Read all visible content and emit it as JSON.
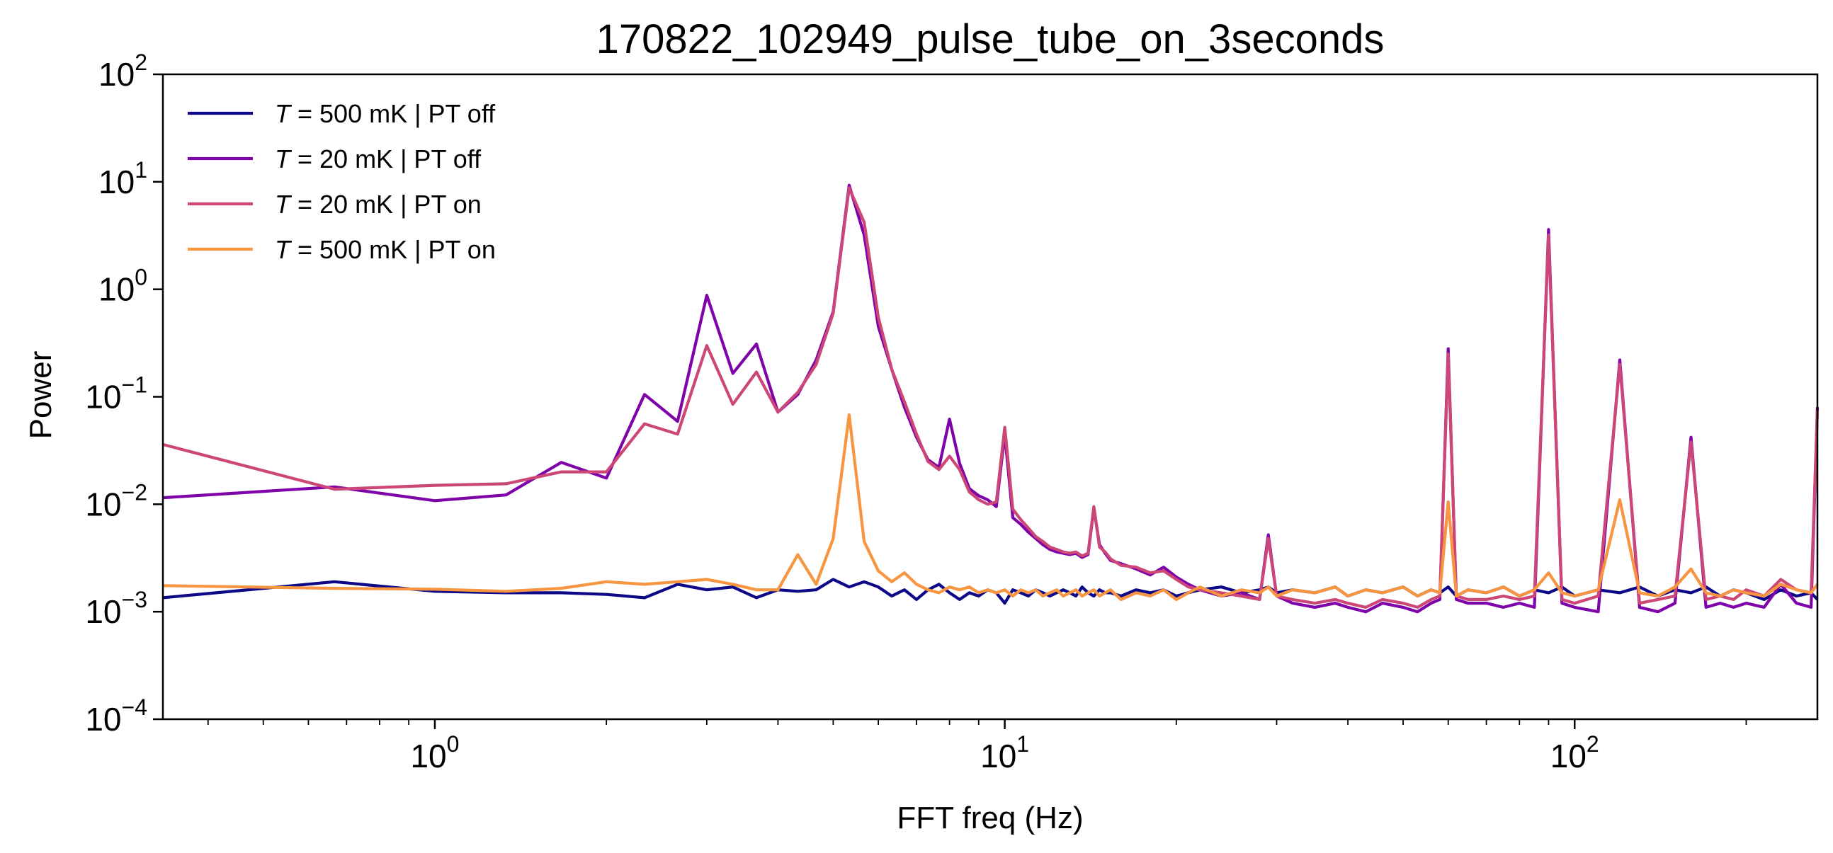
{
  "chart_data": {
    "type": "line",
    "title": "170822_102949_pulse_tube_on_3seconds",
    "xlabel": "FFT freq (Hz)",
    "ylabel": "Power",
    "xscale": "log",
    "yscale": "log",
    "xlim": [
      0.3333,
      266.67
    ],
    "ylim": [
      0.0001,
      100
    ],
    "grid": false,
    "legend_position": "top-left",
    "x_ticks": [
      {
        "base": "10",
        "exp": "0",
        "value": 1
      },
      {
        "base": "10",
        "exp": "1",
        "value": 10
      },
      {
        "base": "10",
        "exp": "2",
        "value": 100
      }
    ],
    "y_ticks": [
      {
        "base": "10",
        "exp": "−4",
        "value": 0.0001
      },
      {
        "base": "10",
        "exp": "−3",
        "value": 0.001
      },
      {
        "base": "10",
        "exp": "−2",
        "value": 0.01
      },
      {
        "base": "10",
        "exp": "−1",
        "value": 0.1
      },
      {
        "base": "10",
        "exp": "0",
        "value": 1
      },
      {
        "base": "10",
        "exp": "1",
        "value": 10
      },
      {
        "base": "10",
        "exp": "2",
        "value": 100
      }
    ],
    "series": [
      {
        "name": "T = 500 mK | PT off",
        "legend_italic": "T",
        "legend_rest": " = 500 mK | PT off",
        "color": "#0d0887",
        "x": [
          0.3333,
          0.6667,
          1.0,
          1.3333,
          1.6667,
          2.0,
          2.3333,
          2.6667,
          3.0,
          3.3333,
          3.6667,
          4.0,
          4.3333,
          4.6667,
          5.0,
          5.3333,
          5.6667,
          6.0,
          6.3333,
          6.6667,
          7.0,
          7.3333,
          7.6667,
          8.0,
          8.3333,
          8.6667,
          9.0,
          9.3333,
          9.6667,
          10.0,
          10.333,
          10.667,
          11.0,
          11.333,
          11.667,
          12.0,
          12.333,
          12.667,
          13.0,
          13.333,
          13.667,
          14.0,
          14.333,
          14.667,
          15.0,
          15.333,
          16.0,
          17.0,
          18.0,
          19.0,
          20.0,
          21.0,
          22.0,
          24.0,
          26.0,
          28.0,
          29.0,
          30.0,
          32.0,
          35.0,
          38.0,
          40.0,
          43.0,
          46.0,
          50.0,
          53.0,
          56.0,
          58.0,
          60.0,
          62.0,
          65.0,
          70.0,
          75.0,
          80.0,
          85.0,
          90.0,
          95.0,
          100.0,
          110.0,
          120.0,
          130.0,
          140.0,
          150.0,
          160.0,
          170.0,
          180.0,
          190.0,
          200.0,
          215.0,
          230.0,
          245.0,
          260.0,
          266.67
        ],
        "y": [
          0.00135,
          0.0019,
          0.00155,
          0.0015,
          0.0015,
          0.00145,
          0.00135,
          0.0018,
          0.0016,
          0.0017,
          0.00135,
          0.0016,
          0.00155,
          0.0016,
          0.002,
          0.0017,
          0.0019,
          0.0017,
          0.0014,
          0.0016,
          0.0013,
          0.0016,
          0.0018,
          0.0015,
          0.0013,
          0.0015,
          0.0014,
          0.0016,
          0.0015,
          0.0012,
          0.0016,
          0.0015,
          0.0014,
          0.0016,
          0.0015,
          0.0014,
          0.0015,
          0.0016,
          0.0015,
          0.0014,
          0.0017,
          0.0015,
          0.0014,
          0.0016,
          0.0015,
          0.0015,
          0.0014,
          0.0016,
          0.0015,
          0.0016,
          0.0014,
          0.0015,
          0.0016,
          0.0017,
          0.0015,
          0.0016,
          0.0017,
          0.0015,
          0.0016,
          0.0015,
          0.0017,
          0.0014,
          0.0016,
          0.0015,
          0.0017,
          0.0014,
          0.0016,
          0.0015,
          0.0017,
          0.0014,
          0.0016,
          0.0015,
          0.0017,
          0.0014,
          0.0016,
          0.0015,
          0.0017,
          0.0014,
          0.0016,
          0.0015,
          0.0017,
          0.0014,
          0.0016,
          0.0015,
          0.0017,
          0.0014,
          0.0016,
          0.0015,
          0.0013,
          0.0016,
          0.0014,
          0.0015,
          0.0013
        ]
      },
      {
        "name": "T = 20 mK | PT off",
        "legend_italic": "T",
        "legend_rest": " = 20 mK | PT off",
        "color": "#7e03a8",
        "x": [
          0.3333,
          0.6667,
          1.0,
          1.3333,
          1.6667,
          2.0,
          2.3333,
          2.6667,
          3.0,
          3.3333,
          3.6667,
          4.0,
          4.3333,
          4.6667,
          5.0,
          5.3333,
          5.6667,
          6.0,
          6.3333,
          6.6667,
          7.0,
          7.3333,
          7.6667,
          8.0,
          8.3333,
          8.6667,
          9.0,
          9.3333,
          9.6667,
          10.0,
          10.333,
          10.667,
          11.0,
          11.333,
          11.667,
          12.0,
          12.333,
          12.667,
          13.0,
          13.333,
          13.667,
          14.0,
          14.333,
          14.667,
          15.0,
          15.333,
          16.0,
          17.0,
          18.0,
          19.0,
          20.0,
          21.0,
          22.0,
          24.0,
          26.0,
          28.0,
          29.0,
          30.0,
          32.0,
          35.0,
          38.0,
          40.0,
          43.0,
          46.0,
          50.0,
          53.0,
          56.0,
          58.0,
          60.0,
          62.0,
          65.0,
          70.0,
          75.0,
          80.0,
          85.0,
          90.0,
          95.0,
          100.0,
          110.0,
          120.0,
          130.0,
          140.0,
          150.0,
          160.0,
          170.0,
          180.0,
          190.0,
          200.0,
          215.0,
          230.0,
          245.0,
          260.0,
          266.67
        ],
        "y": [
          0.0115,
          0.0145,
          0.0108,
          0.0122,
          0.0245,
          0.0175,
          0.105,
          0.059,
          0.88,
          0.165,
          0.31,
          0.072,
          0.105,
          0.22,
          0.62,
          9.3,
          3.2,
          0.45,
          0.18,
          0.08,
          0.042,
          0.026,
          0.022,
          0.062,
          0.024,
          0.014,
          0.012,
          0.011,
          0.0095,
          0.045,
          0.0075,
          0.0065,
          0.0055,
          0.0048,
          0.0042,
          0.0038,
          0.0036,
          0.0035,
          0.0034,
          0.0035,
          0.0032,
          0.0034,
          0.0092,
          0.0042,
          0.0035,
          0.003,
          0.0028,
          0.0025,
          0.0022,
          0.0026,
          0.0021,
          0.0018,
          0.0016,
          0.0014,
          0.0015,
          0.0013,
          0.0052,
          0.0014,
          0.0012,
          0.0011,
          0.0012,
          0.0011,
          0.001,
          0.0012,
          0.0011,
          0.001,
          0.0012,
          0.0013,
          0.28,
          0.0013,
          0.0012,
          0.0012,
          0.0011,
          0.0012,
          0.0011,
          3.6,
          0.0012,
          0.0011,
          0.001,
          0.22,
          0.0011,
          0.001,
          0.0012,
          0.042,
          0.0011,
          0.0012,
          0.0011,
          0.0012,
          0.0011,
          0.0018,
          0.0012,
          0.0011,
          0.08
        ]
      },
      {
        "name": "T = 20 mK | PT on",
        "legend_italic": "T",
        "legend_rest": " = 20 mK | PT on",
        "color": "#cc4778",
        "x": [
          0.3333,
          0.6667,
          1.0,
          1.3333,
          1.6667,
          2.0,
          2.3333,
          2.6667,
          3.0,
          3.3333,
          3.6667,
          4.0,
          4.3333,
          4.6667,
          5.0,
          5.3333,
          5.6667,
          6.0,
          6.3333,
          6.6667,
          7.0,
          7.3333,
          7.6667,
          8.0,
          8.3333,
          8.6667,
          9.0,
          9.3333,
          9.6667,
          10.0,
          10.333,
          10.667,
          11.0,
          11.333,
          11.667,
          12.0,
          12.333,
          12.667,
          13.0,
          13.333,
          13.667,
          14.0,
          14.333,
          14.667,
          15.0,
          15.333,
          16.0,
          17.0,
          18.0,
          19.0,
          20.0,
          21.0,
          22.0,
          24.0,
          26.0,
          28.0,
          29.0,
          30.0,
          32.0,
          35.0,
          38.0,
          40.0,
          43.0,
          46.0,
          50.0,
          53.0,
          56.0,
          58.0,
          60.0,
          62.0,
          65.0,
          70.0,
          75.0,
          80.0,
          85.0,
          90.0,
          95.0,
          100.0,
          110.0,
          120.0,
          130.0,
          140.0,
          150.0,
          160.0,
          170.0,
          180.0,
          190.0,
          200.0,
          215.0,
          230.0,
          245.0,
          260.0,
          266.67
        ],
        "y": [
          0.036,
          0.0138,
          0.015,
          0.0155,
          0.02,
          0.02,
          0.056,
          0.045,
          0.3,
          0.085,
          0.17,
          0.072,
          0.11,
          0.2,
          0.6,
          8.8,
          4.2,
          0.55,
          0.18,
          0.09,
          0.045,
          0.025,
          0.021,
          0.028,
          0.021,
          0.013,
          0.011,
          0.01,
          0.0105,
          0.052,
          0.009,
          0.0072,
          0.006,
          0.005,
          0.0045,
          0.004,
          0.0038,
          0.0036,
          0.0035,
          0.0036,
          0.0033,
          0.0035,
          0.0095,
          0.004,
          0.0036,
          0.0031,
          0.0027,
          0.0026,
          0.0023,
          0.0024,
          0.002,
          0.0017,
          0.0016,
          0.0015,
          0.0014,
          0.0013,
          0.0048,
          0.0014,
          0.0013,
          0.0012,
          0.0013,
          0.0012,
          0.0011,
          0.0013,
          0.0012,
          0.0011,
          0.0013,
          0.0014,
          0.25,
          0.0014,
          0.0013,
          0.0013,
          0.0014,
          0.0013,
          0.0014,
          3.2,
          0.0013,
          0.0012,
          0.0014,
          0.2,
          0.0012,
          0.0013,
          0.0014,
          0.038,
          0.0013,
          0.0014,
          0.0013,
          0.0016,
          0.0014,
          0.002,
          0.0016,
          0.0015,
          0.075
        ]
      },
      {
        "name": "T = 500 mK | PT on",
        "legend_italic": "T",
        "legend_rest": " = 500 mK | PT on",
        "color": "#f89540",
        "x": [
          0.3333,
          0.6667,
          1.0,
          1.3333,
          1.6667,
          2.0,
          2.3333,
          2.6667,
          3.0,
          3.3333,
          3.6667,
          4.0,
          4.3333,
          4.6667,
          5.0,
          5.3333,
          5.6667,
          6.0,
          6.3333,
          6.6667,
          7.0,
          7.3333,
          7.6667,
          8.0,
          8.3333,
          8.6667,
          9.0,
          9.3333,
          9.6667,
          10.0,
          10.333,
          10.667,
          11.0,
          11.333,
          11.667,
          12.0,
          12.333,
          12.667,
          13.0,
          13.333,
          13.667,
          14.0,
          14.333,
          14.667,
          15.0,
          15.333,
          16.0,
          17.0,
          18.0,
          19.0,
          20.0,
          21.0,
          22.0,
          24.0,
          26.0,
          28.0,
          29.0,
          30.0,
          32.0,
          35.0,
          38.0,
          40.0,
          43.0,
          46.0,
          50.0,
          53.0,
          56.0,
          58.0,
          60.0,
          62.0,
          65.0,
          70.0,
          75.0,
          80.0,
          85.0,
          90.0,
          95.0,
          100.0,
          110.0,
          120.0,
          130.0,
          140.0,
          150.0,
          160.0,
          170.0,
          180.0,
          190.0,
          200.0,
          215.0,
          230.0,
          245.0,
          260.0,
          266.67
        ],
        "y": [
          0.00175,
          0.00165,
          0.00162,
          0.00155,
          0.00165,
          0.0019,
          0.0018,
          0.0019,
          0.002,
          0.0018,
          0.0016,
          0.0016,
          0.0034,
          0.0018,
          0.0048,
          0.068,
          0.0045,
          0.0024,
          0.0019,
          0.0023,
          0.0018,
          0.0016,
          0.0015,
          0.0017,
          0.0016,
          0.0017,
          0.0015,
          0.0016,
          0.0015,
          0.0016,
          0.0014,
          0.0016,
          0.0015,
          0.0016,
          0.0014,
          0.0015,
          0.0016,
          0.0014,
          0.0015,
          0.0016,
          0.0014,
          0.0015,
          0.0016,
          0.0014,
          0.0015,
          0.0016,
          0.0013,
          0.0015,
          0.0014,
          0.0016,
          0.0013,
          0.0015,
          0.0017,
          0.0014,
          0.0016,
          0.0015,
          0.0017,
          0.0014,
          0.0016,
          0.0015,
          0.0017,
          0.0014,
          0.0016,
          0.0015,
          0.0017,
          0.0014,
          0.0016,
          0.0015,
          0.0105,
          0.0014,
          0.0016,
          0.0015,
          0.0017,
          0.0014,
          0.0016,
          0.0023,
          0.0015,
          0.0014,
          0.0016,
          0.011,
          0.0015,
          0.0014,
          0.0017,
          0.0025,
          0.0015,
          0.0014,
          0.0016,
          0.0015,
          0.0014,
          0.0018,
          0.0016,
          0.0015,
          0.0018
        ]
      }
    ]
  }
}
